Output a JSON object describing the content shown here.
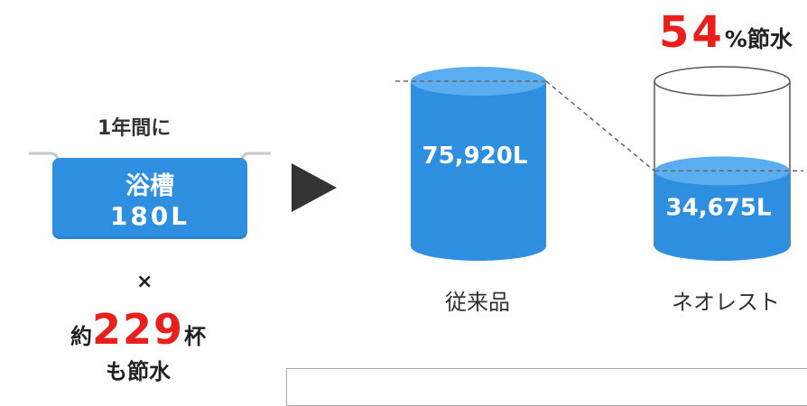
{
  "intro": {
    "year_label": "1年間に",
    "tub_name": "浴槽",
    "tub_volume": "180L",
    "times": "×",
    "cups_prefix": "約",
    "cups_value": "229",
    "cups_suffix": "杯",
    "saved_text": "も節水"
  },
  "savings": {
    "percent_value": "54",
    "percent_suffix": "%節水"
  },
  "colors": {
    "water": "#2e8ee0",
    "water_top": "#5aaef0",
    "accent_red": "#e8201c",
    "arrow": "#333333"
  },
  "icons": {
    "arrow": "play-arrow-icon"
  },
  "chart_data": {
    "type": "bar",
    "categories": [
      "従来品",
      "ネオレスト"
    ],
    "values": [
      75920,
      34675
    ],
    "value_labels": [
      "75,920L",
      "34,675L"
    ],
    "title": "",
    "xlabel": "",
    "ylabel": "",
    "ylim": [
      0,
      75920
    ],
    "grid": false
  }
}
